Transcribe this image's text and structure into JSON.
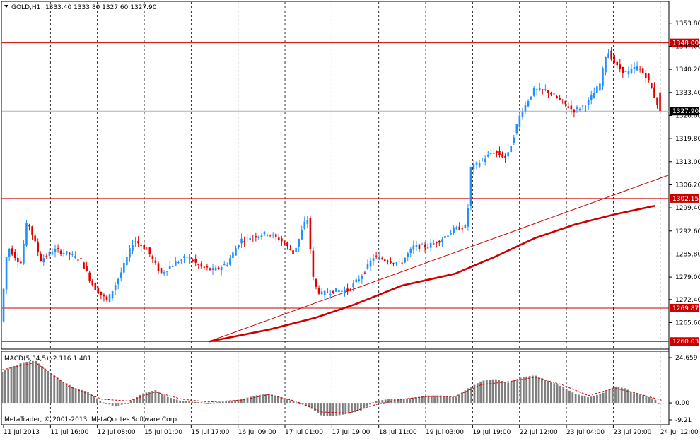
{
  "header": {
    "symbol_label": "GOLD,H1",
    "ohlc": "1333.40 1333.80 1327.60 1327.90"
  },
  "macd_label": "MACD(5,34,5) -2.116 1.481",
  "copyright": "MetaTrader, © 2001-2013, MetaQuotes Software Corp.",
  "colors": {
    "bull": "#1e90ff",
    "bear": "#e00000",
    "line_red": "#cc0000",
    "grid": "#000000",
    "macd_hist": "#808080",
    "signal": "#cc0000"
  },
  "chart_data": [
    {
      "type": "candlestick",
      "symbol": "GOLD",
      "timeframe": "H1",
      "ylim": [
        1258,
        1360
      ],
      "y_ticks": [
        "1353.80",
        "1347.00",
        "1340.20",
        "1333.40",
        "1326.60",
        "1319.80",
        "1313.00",
        "1306.20",
        "1299.40",
        "1292.60",
        "1285.80",
        "1279.00",
        "1272.40",
        "1265.60"
      ],
      "x_ticks": [
        "11 Jul 2013",
        "11 Jul 16:00",
        "12 Jul 08:00",
        "15 Jul 01:00",
        "15 Jul 17:00",
        "16 Jul 09:00",
        "17 Jul 01:00",
        "17 Jul 19:00",
        "18 Jul 11:00",
        "19 Jul 03:00",
        "19 Jul 19:00",
        "22 Jul 12:00",
        "23 Jul 04:00",
        "23 Jul 20:00",
        "24 Jul 12:00"
      ],
      "horizontal_levels": [
        {
          "value": 1348.0,
          "label": "1348.00"
        },
        {
          "value": 1302.15,
          "label": "1302.15"
        },
        {
          "value": 1269.87,
          "label": "1269.87"
        },
        {
          "value": 1260.03,
          "label": "1260.03"
        }
      ],
      "current_price": {
        "value": 1327.9,
        "label": "1327.90"
      },
      "trendline": {
        "points": [
          [
            0.31,
            1260.0
          ],
          [
            1.0,
            1309.0
          ]
        ]
      },
      "moving_average": {
        "points": [
          [
            0.31,
            1260.0
          ],
          [
            0.4,
            1263.5
          ],
          [
            0.47,
            1267.0
          ],
          [
            0.53,
            1271.0
          ],
          [
            0.6,
            1276.5
          ],
          [
            0.68,
            1280.0
          ],
          [
            0.74,
            1285.0
          ],
          [
            0.8,
            1290.5
          ],
          [
            0.86,
            1294.5
          ],
          [
            0.92,
            1297.5
          ],
          [
            0.98,
            1300.0
          ]
        ]
      },
      "price_path": [
        [
          0.0,
          1266.0
        ],
        [
          0.01,
          1288.0
        ],
        [
          0.03,
          1283.0
        ],
        [
          0.04,
          1296.0
        ],
        [
          0.06,
          1284.0
        ],
        [
          0.08,
          1287.0
        ],
        [
          0.1,
          1286.0
        ],
        [
          0.12,
          1284.0
        ],
        [
          0.14,
          1276.0
        ],
        [
          0.16,
          1272.0
        ],
        [
          0.18,
          1280.0
        ],
        [
          0.2,
          1290.0
        ],
        [
          0.22,
          1287.0
        ],
        [
          0.24,
          1280.0
        ],
        [
          0.26,
          1283.0
        ],
        [
          0.28,
          1285.0
        ],
        [
          0.3,
          1282.0
        ],
        [
          0.32,
          1281.0
        ],
        [
          0.34,
          1283.0
        ],
        [
          0.36,
          1290.0
        ],
        [
          0.38,
          1291.0
        ],
        [
          0.4,
          1292.0
        ],
        [
          0.42,
          1290.0
        ],
        [
          0.44,
          1286.0
        ],
        [
          0.46,
          1297.0
        ],
        [
          0.47,
          1277.0
        ],
        [
          0.48,
          1274.0
        ],
        [
          0.5,
          1275.0
        ],
        [
          0.52,
          1275.0
        ],
        [
          0.54,
          1279.0
        ],
        [
          0.56,
          1285.0
        ],
        [
          0.58,
          1284.0
        ],
        [
          0.6,
          1283.0
        ],
        [
          0.62,
          1288.0
        ],
        [
          0.64,
          1288.0
        ],
        [
          0.66,
          1290.0
        ],
        [
          0.68,
          1293.0
        ],
        [
          0.7,
          1294.0
        ],
        [
          0.705,
          1311.0
        ],
        [
          0.72,
          1313.0
        ],
        [
          0.74,
          1316.0
        ],
        [
          0.76,
          1314.0
        ],
        [
          0.78,
          1327.0
        ],
        [
          0.8,
          1334.0
        ],
        [
          0.82,
          1334.0
        ],
        [
          0.84,
          1331.0
        ],
        [
          0.86,
          1328.0
        ],
        [
          0.88,
          1330.0
        ],
        [
          0.9,
          1336.0
        ],
        [
          0.91,
          1346.0
        ],
        [
          0.925,
          1341.0
        ],
        [
          0.94,
          1339.0
        ],
        [
          0.955,
          1341.0
        ],
        [
          0.97,
          1338.0
        ],
        [
          0.98,
          1333.0
        ],
        [
          0.99,
          1327.9
        ]
      ]
    },
    {
      "type": "bar",
      "name": "MACD(5,34,5)",
      "y_ticks": [
        "24.659",
        "0.00",
        "-9.21"
      ],
      "ylim": [
        -9.21,
        24.659
      ],
      "histogram_path": [
        [
          0.0,
          17.0
        ],
        [
          0.03,
          22.0
        ],
        [
          0.05,
          23.0
        ],
        [
          0.07,
          17.0
        ],
        [
          0.09,
          12.0
        ],
        [
          0.11,
          8.0
        ],
        [
          0.13,
          6.0
        ],
        [
          0.15,
          0.5
        ],
        [
          0.17,
          -2.0
        ],
        [
          0.19,
          0.0
        ],
        [
          0.21,
          5.0
        ],
        [
          0.23,
          7.0
        ],
        [
          0.25,
          3.0
        ],
        [
          0.27,
          1.0
        ],
        [
          0.29,
          0.5
        ],
        [
          0.31,
          0.0
        ],
        [
          0.33,
          0.5
        ],
        [
          0.36,
          2.0
        ],
        [
          0.38,
          4.0
        ],
        [
          0.4,
          5.0
        ],
        [
          0.42,
          3.0
        ],
        [
          0.44,
          0.5
        ],
        [
          0.46,
          -2.0
        ],
        [
          0.48,
          -7.0
        ],
        [
          0.5,
          -7.0
        ],
        [
          0.52,
          -6.0
        ],
        [
          0.54,
          -4.0
        ],
        [
          0.56,
          1.0
        ],
        [
          0.58,
          2.0
        ],
        [
          0.6,
          2.0
        ],
        [
          0.62,
          3.0
        ],
        [
          0.64,
          4.0
        ],
        [
          0.66,
          4.0
        ],
        [
          0.68,
          3.0
        ],
        [
          0.7,
          8.0
        ],
        [
          0.72,
          12.0
        ],
        [
          0.74,
          13.0
        ],
        [
          0.76,
          11.0
        ],
        [
          0.78,
          14.0
        ],
        [
          0.8,
          15.0
        ],
        [
          0.82,
          12.0
        ],
        [
          0.84,
          9.0
        ],
        [
          0.86,
          5.0
        ],
        [
          0.88,
          3.0
        ],
        [
          0.9,
          5.0
        ],
        [
          0.92,
          9.0
        ],
        [
          0.935,
          8.0
        ],
        [
          0.95,
          5.0
        ],
        [
          0.965,
          4.0
        ],
        [
          0.98,
          2.0
        ],
        [
          0.99,
          -2.116
        ]
      ],
      "signal_path": [
        [
          0.0,
          18.0
        ],
        [
          0.05,
          22.0
        ],
        [
          0.1,
          9.0
        ],
        [
          0.15,
          2.0
        ],
        [
          0.19,
          1.0
        ],
        [
          0.23,
          6.0
        ],
        [
          0.27,
          2.0
        ],
        [
          0.31,
          0.5
        ],
        [
          0.36,
          1.5
        ],
        [
          0.4,
          4.5
        ],
        [
          0.44,
          1.0
        ],
        [
          0.48,
          -5.0
        ],
        [
          0.52,
          -5.5
        ],
        [
          0.56,
          -1.0
        ],
        [
          0.6,
          2.0
        ],
        [
          0.64,
          3.5
        ],
        [
          0.68,
          3.5
        ],
        [
          0.72,
          10.0
        ],
        [
          0.76,
          11.5
        ],
        [
          0.8,
          14.0
        ],
        [
          0.84,
          10.0
        ],
        [
          0.88,
          4.0
        ],
        [
          0.92,
          8.0
        ],
        [
          0.95,
          5.5
        ],
        [
          0.99,
          1.481
        ]
      ]
    }
  ]
}
